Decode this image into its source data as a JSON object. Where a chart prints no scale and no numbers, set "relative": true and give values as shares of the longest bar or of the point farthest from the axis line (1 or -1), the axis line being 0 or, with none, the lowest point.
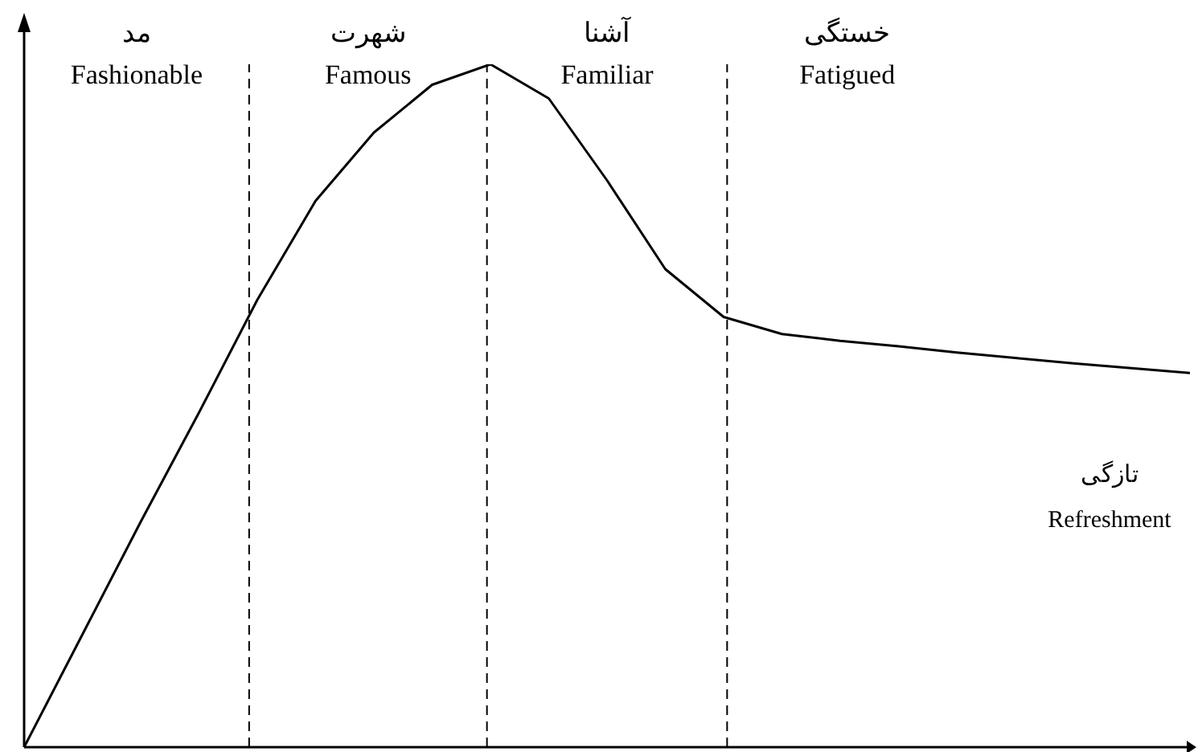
{
  "chart_data": {
    "type": "line",
    "relative": true,
    "tick_labels": false,
    "legend": false,
    "marker": "none",
    "line_style": "solid",
    "categories": [
      null,
      null,
      null,
      null,
      null,
      null,
      null,
      null,
      null,
      null,
      null,
      null,
      null,
      null,
      null,
      null,
      null,
      null,
      null,
      null,
      null
    ],
    "series": [
      {
        "color": "#000000",
        "values": [
          0,
          0.165,
          0.33,
          0.49,
          0.655,
          0.8,
          0.9,
          0.97,
          1,
          0.95,
          0.83,
          0.7,
          0.63,
          0.605,
          0.595,
          0.587,
          0.578,
          0.57,
          0.562,
          0.555,
          0.548
        ]
      }
    ],
    "annotations": [
      "مد\nFashionable",
      "شهرت\nFamous",
      "آشنا\nFamiliar",
      "خستگی\nFatigued",
      "تازگی\nRefreshment"
    ]
  }
}
